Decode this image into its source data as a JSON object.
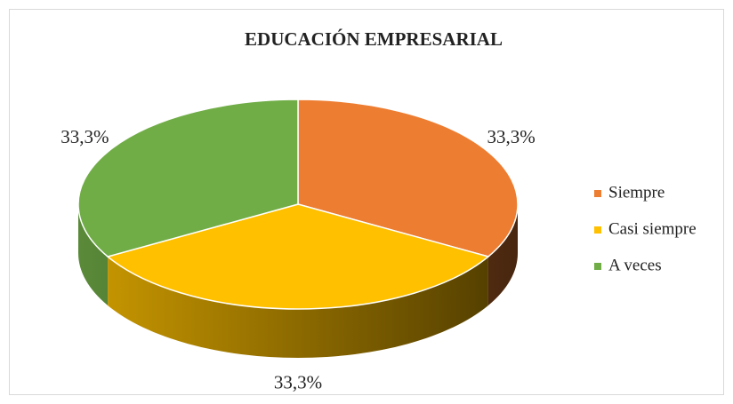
{
  "chart_data": {
    "type": "pie",
    "title": "EDUCACIÓN EMPRESARIAL",
    "categories": [
      "Siempre",
      "Casi siempre",
      "A veces"
    ],
    "values": [
      33.3,
      33.3,
      33.3
    ],
    "value_labels": [
      "33,3%",
      "33,3%",
      "33,3%"
    ],
    "colors": [
      "#ED7D31",
      "#FFC000",
      "#70AD47"
    ],
    "legend": "right"
  }
}
